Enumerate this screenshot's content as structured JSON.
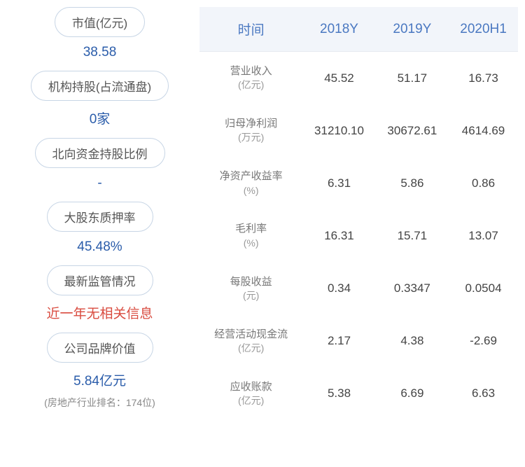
{
  "left": {
    "items": [
      {
        "label": "市值(亿元)",
        "value": "38.58",
        "value_color": "#2a5caa"
      },
      {
        "label": "机构持股(占流通盘)",
        "value": "0家",
        "value_color": "#2a5caa"
      },
      {
        "label": "北向资金持股比例",
        "value": "-",
        "value_color": "#2a5caa"
      },
      {
        "label": "大股东质押率",
        "value": "45.48%",
        "value_color": "#2a5caa"
      },
      {
        "label": "最新监管情况",
        "value": "近一年无相关信息",
        "value_color": "#d94b3f"
      },
      {
        "label": "公司品牌价值",
        "value": "5.84亿元",
        "value_color": "#2a5caa",
        "note": "(房地产行业排名：174位)"
      }
    ]
  },
  "table": {
    "headers": [
      "时间",
      "2018Y",
      "2019Y",
      "2020H1"
    ],
    "rows": [
      {
        "label": "营业收入",
        "unit": "(亿元)",
        "cells": [
          "45.52",
          "51.17",
          "16.73"
        ]
      },
      {
        "label": "归母净利润",
        "unit": "(万元)",
        "cells": [
          "31210.10",
          "30672.61",
          "4614.69"
        ]
      },
      {
        "label": "净资产收益率",
        "unit": "(%)",
        "cells": [
          "6.31",
          "5.86",
          "0.86"
        ]
      },
      {
        "label": "毛利率",
        "unit": "(%)",
        "cells": [
          "16.31",
          "15.71",
          "13.07"
        ]
      },
      {
        "label": "每股收益",
        "unit": "(元)",
        "cells": [
          "0.34",
          "0.3347",
          "0.0504"
        ]
      },
      {
        "label": "经营活动现金流",
        "unit": "(亿元)",
        "cells": [
          "2.17",
          "4.38",
          "-2.69"
        ]
      },
      {
        "label": "应收账款",
        "unit": "(亿元)",
        "cells": [
          "5.38",
          "6.69",
          "6.63"
        ]
      }
    ]
  },
  "colors": {
    "header_bg": "#f2f5fa",
    "header_text": "#4a78c1",
    "pill_border": "#c7d5e5",
    "value_blue": "#2a5caa",
    "value_red": "#d94b3f"
  }
}
